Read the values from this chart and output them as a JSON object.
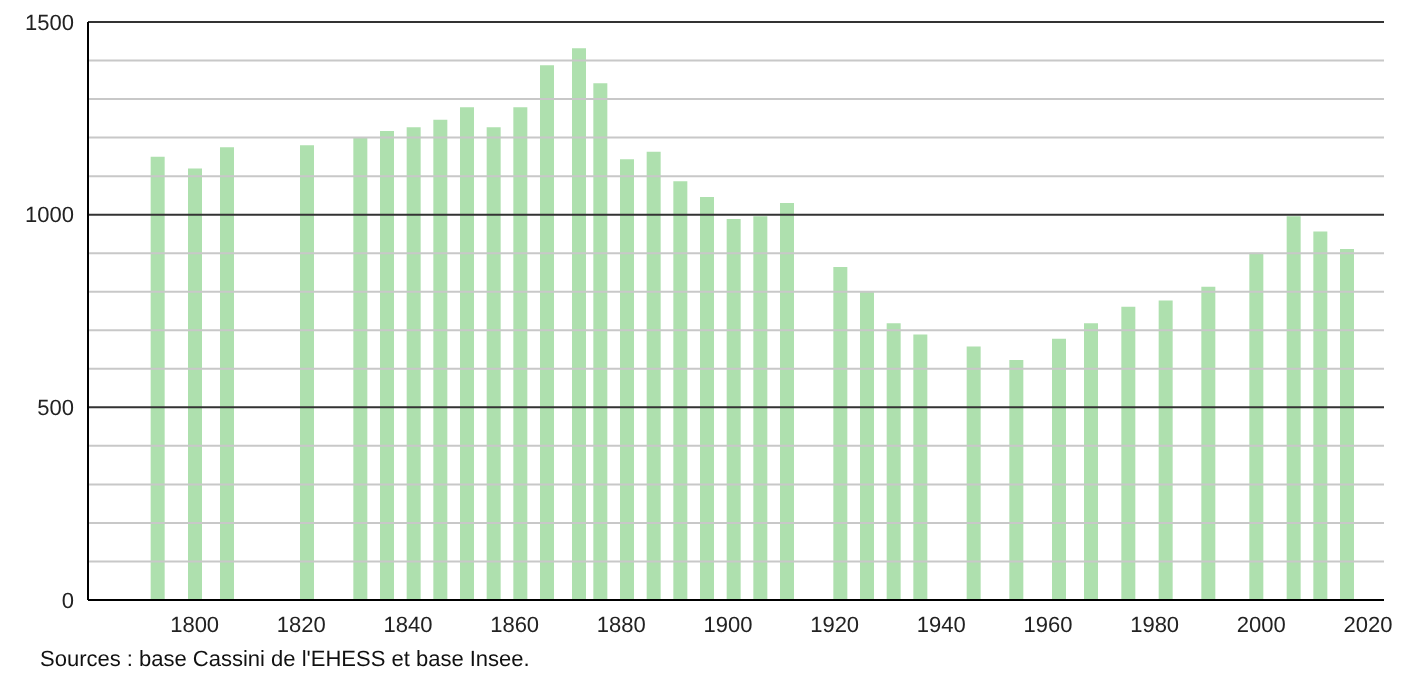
{
  "chart_data": {
    "type": "bar",
    "x": [
      1793,
      1800,
      1806,
      1821,
      1831,
      1836,
      1841,
      1846,
      1851,
      1856,
      1861,
      1866,
      1872,
      1876,
      1881,
      1886,
      1891,
      1896,
      1901,
      1906,
      1911,
      1921,
      1926,
      1931,
      1936,
      1946,
      1954,
      1962,
      1968,
      1975,
      1982,
      1990,
      1999,
      2006,
      2011,
      2016
    ],
    "values": [
      1150,
      1120,
      1175,
      1180,
      1200,
      1217,
      1227,
      1246,
      1279,
      1227,
      1279,
      1388,
      1432,
      1341,
      1144,
      1163,
      1087,
      1046,
      989,
      996,
      1030,
      864,
      802,
      718,
      689,
      658,
      623,
      678,
      718,
      761,
      777,
      813,
      901,
      996,
      956,
      911
    ],
    "color": "#aee0ae",
    "xlim": [
      1780,
      2023
    ],
    "xticks": [
      1800,
      1820,
      1840,
      1860,
      1880,
      1900,
      1920,
      1940,
      1960,
      1980,
      2000,
      2020
    ],
    "ylim": [
      0,
      1500
    ],
    "yticks": [
      0,
      {
        "value": 100,
        "label": null
      },
      {
        "value": 200,
        "label": null
      },
      {
        "value": 300,
        "label": null
      },
      {
        "value": 400,
        "label": null
      },
      500,
      {
        "value": 600,
        "label": null
      },
      {
        "value": 700,
        "label": null
      },
      {
        "value": 800,
        "label": null
      },
      {
        "value": 900,
        "label": null
      },
      1000,
      {
        "value": 1100,
        "label": null
      },
      {
        "value": 1200,
        "label": null
      },
      {
        "value": 1300,
        "label": null
      },
      {
        "value": 1400,
        "label": null
      },
      1500
    ],
    "grid": "y",
    "annotations": [
      "Sources : base Cassini de l'EHESS et base Insee."
    ]
  }
}
